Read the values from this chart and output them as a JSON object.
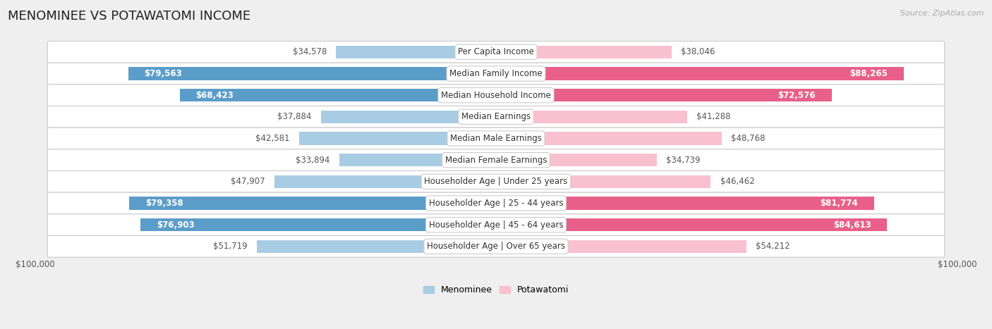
{
  "title": "MENOMINEE VS POTAWATOMI INCOME",
  "source": "Source: ZipAtlas.com",
  "categories": [
    "Per Capita Income",
    "Median Family Income",
    "Median Household Income",
    "Median Earnings",
    "Median Male Earnings",
    "Median Female Earnings",
    "Householder Age | Under 25 years",
    "Householder Age | 25 - 44 years",
    "Householder Age | 45 - 64 years",
    "Householder Age | Over 65 years"
  ],
  "menominee_values": [
    34578,
    79563,
    68423,
    37884,
    42581,
    33894,
    47907,
    79358,
    76903,
    51719
  ],
  "potawatomi_values": [
    38046,
    88265,
    72576,
    41288,
    48768,
    34739,
    46462,
    81774,
    84613,
    54212
  ],
  "menominee_labels": [
    "$34,578",
    "$79,563",
    "$68,423",
    "$37,884",
    "$42,581",
    "$33,894",
    "$47,907",
    "$79,358",
    "$76,903",
    "$51,719"
  ],
  "potawatomi_labels": [
    "$38,046",
    "$88,265",
    "$72,576",
    "$41,288",
    "$48,768",
    "$34,739",
    "$46,462",
    "$81,774",
    "$84,613",
    "$54,212"
  ],
  "menominee_color_light": "#a8cce4",
  "menominee_color_dark": "#5b9dc9",
  "potawatomi_color_light": "#f9c0d0",
  "potawatomi_color_dark": "#e8608a",
  "max_value": 100000,
  "background_color": "#efefef",
  "row_bg_color": "#ffffff",
  "title_fontsize": 13,
  "label_fontsize": 8.5,
  "category_fontsize": 8.5,
  "legend_fontsize": 9,
  "bar_height": 0.6,
  "xlabel_left": "$100,000",
  "xlabel_right": "$100,000",
  "inside_label_threshold": 55000
}
